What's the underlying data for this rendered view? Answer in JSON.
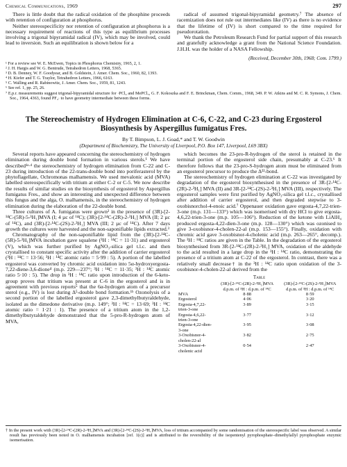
{
  "header": {
    "left": "Chemical Communications, 1969",
    "right": "297"
  },
  "top": {
    "left_paragraphs": [
      "There is little doubt that the radical oxidation of the phosphine proceeds with retention of configuration at phosphorus.",
      "Neither stereospecificity nor retention of configuration at phosphorus is a necessary requirement of reactions of this type as equilibrium processes involving a trigonal bipyramidal radical (IV), which may be involved, could lead to inversion. Such an equilibration is shown below for a"
    ],
    "footnotes": [
      "¹ For a review see W. E. McEwen, Topics in Phosphorus Chemistry, 1965, 2, 1.",
      "² J. H. Hargis and W. G. Bentrude, Tetrahedron Letters, 1968, 5365.",
      "³ D. B. Denney, W. F. Goodyear, and B. Goldstein, J. Amer. Chem. Soc., 1960, 82, 1393.",
      "⁴ H. Kiefer and T. G. Traylor, Tetrahedron Letters, 1966, 6163.",
      "⁵ C. Walling and R. Rabinowitz, J. Amer. Chem. Soc., 1959, 81, 1243.",
      "⁶ See ref. 1, pp. 25, 26.",
      "⁷ E.p.r. measurements suggest trigonal-bipyramidal structure for ·PCl₄ and MePCl₃, G. F. Kokoszka and F. E. Brinckman, Chem. Comm., 1968, 349. P. W. Atkins and M. C. R. Symons, J. Chem. Soc., 1964, 4363, found PF₄· to have geometry intermediate between these forms."
    ],
    "right_paragraphs": [
      "radical of assumed trigonal-bipyramidal geometry.⁷ The absence of racemization does not rule out intermediates like (IV) as there is no evidence that the lifetime of (IV) is short compared to the time required for pseudorotation.",
      "We thank the Petroleum Research Fund for partial support of this research and gratefully acknowledge a grant from the National Science Foundation. J.H.H. was the holder of a NASA Fellowship."
    ],
    "received": "(Received, December 30th, 1968; Com. 1799.)"
  },
  "article": {
    "title": "The Stereochemistry of Hydrogen Elimination at C-6, C-22, and C-23 during Ergosterol Biosynthesis by Aspergillus fumigatus Fres.",
    "authors": "By T. Bimpson, L. J. Goad,* and T. W. Goodwin",
    "affiliation": "(Department of Biochemistry, The University of Liverpool, P.O. Box 147, Liverpool, L69 3BX)",
    "left_paragraphs": [
      "Several reports have appeared concerning the stereochemistry of hydrogen elimination during double bond formation in various sterols.¹ We have described¹ᵃ·ᵈ the stereochemistry of hydrogen elimination from C-22 and C-23 during introduction of the 22-trans-double bond into poriferasterol by the phytoflagellate, Ochromonas malhamensis. We used mevalonic acid (MVA) labelled stereospecifically with tritium at either C-2 or C-5. We now describe the results of similar studies on the biosynthesis of ergosterol by Aspergillus fumigatus Fres., and show an interesting and unexpected difference between this fungus and the alga, O. malhamensis, in the stereochemistry of hydrogen elimination during the elaboration of the 22-double bond.",
      "Three cultures of A. fumigatus were grown² in the presence of (3R)-[2-¹⁴C-(5R)-5-³H₁]MVA (I; 4 µc of ¹⁴C); (3R)-[2-¹⁴C-(2R)-2-³H₁] MVA (II; 2 µc of ¹⁴C), and (3R)-[2-¹⁴C-(2S)-2-³H₁] MVA (III; 2 µc of ¹⁴C). After 7 days growth the cultures were harvested and the non-saponifiable lipids extracted.³",
      "Chromatography of the non-saponifiable lipid from the (3R)-[2-¹⁴C-(5R)-5-³H₁]MVA incubation gave squalene (³H : ¹⁴C = 11·31) and ergosterol (V), which was further purified by AgNO₃-silica gel t.l.c. and then crystallised to constant specific activity after the addition of carrier ergosterol (³H : ¹⁴C = 13·56; ³H : ¹⁴C atomic ratio = 5·99 : 5). A portion of the labelled ergosterol was converted by chromic acid oxidation into 5α-hydroxyergosta-7,22-diene-3,6-dione⁴ (m.p. 229—237°; ³H : ¹⁴C = 11·35; ³H : ¹⁴C atomic ratio 5·10 : 5). The drop in ³H : ¹⁴C ratio upon introduction of the 6-keto-group proves that tritium was present at C-6 in the ergosterol and is in agreement with previous reports⁵ that the 6α-hydrogen atom of a precursor sterol (e.g., IV) is lost during Δ⁵-double bond formation.¹ᵇ Ozonolysis of a second portion of the labelled ergosterol gave 2,3-dimethylbutyraldehyde, isolated as the dimedone derivative (m.p. 149°; ³H : ¹⁴C = 13·69; ³H : ¹⁴C atomic ratio = 1·21 : 1). The presence of a tritium atom in the 1,2-dimethylbutyraldehyde demonstrated that the 5-pro-R-hydrogen atom of MVA,"
    ],
    "right_paragraphs": [
      "which becomes the 23-pro-R-hydrogen of the sterol is retained in the terminal portion of the ergosterol side chain, presumably at C-23.⁶ It therefore follows that the 23-pro-S-hydrogen atom must be eliminated from an ergosterol precursor to produce the Δ²²-bond.",
      "The stereochemistry of hydrogen elimination at C-22 was investigated by degradation of the ergosterol biosynthesised in the presence of 3R-[2-¹⁴C-(2R)-2-³H₁] MVA (II) and 3R-[2-¹⁴C-(2S)-2-³H₁] MVA (III), respectively. The ergosterol samples were first purified by AgNO₃-silica gel t.l.c., crystallised after addition of carrier ergosterol, and then degraded stepwise to 3-oxobisnorchol-4-enoic acid.⁷ Oppenauer oxidation gave ergosta-4,7,22-trien-3-one (m.p. 131—133°) which was isomerised with dry HCl to give ergosta-4,6,22-trien-3-one (m.p. 105—106°). Reduction of the ketone with LiAlH₄ produced ergosta-4,22-dien-3-one (m.p. 128—130°) which was ozonised to give 3-oxobisnor-4-cholen-22-al (m.p. 153—155°). Finally, oxidation with chromic acid gave 3-oxobisnor-4-cholenic acid (m.p. 263—265°, decomp.). The ³H : ¹⁴C ratios are given in the Table. In the degradation of the ergosterol biosynthesised from 3R-[2-¹⁴C-(2R)-2-³H₁] MVA, oxidation of the aldehyde to the acid resulted in a large drop in the ³H : ¹⁴C ratio, demonstrating the presence of a tritium atom at C-22 of the ergosterol. In contrast, there was a relatively small decrease† in the ³H : ¹⁴C ratio upon oxidation of the 3-oxobisnor-4-cholen-22-al derived from the"
    ],
    "table": {
      "title": "Table",
      "columns": [
        "(3R)-[2-¹⁴C-(2R)-2-³H₁]MVA d.p.m. of ³H : d.p.m. of ¹⁴C",
        "(3R)-[2-¹⁴C-(2S)-2-³H₁]MVA d.p.m. of ³H : d.p.m. of ¹⁴C"
      ],
      "rows": [
        [
          "MVA",
          "8·88",
          "8·59"
        ],
        [
          "Ergosterol",
          "4·06",
          "3·20"
        ],
        [
          "Ergosta-4,7,22-trien-3-one",
          "3·89",
          "3·15"
        ],
        [
          "Ergosta-4,6,22-trien-3-one",
          "3·77",
          "3·12"
        ],
        [
          "Ergosta-4,22-dien-3-one",
          "3·95",
          "3·08"
        ],
        [
          "3-Oxobisnor-4-cholen-22-al",
          "3·82",
          "2·75"
        ],
        [
          "3-Oxobisnor-4-cholenic acid",
          "0·54",
          "2·47"
        ]
      ]
    },
    "footnote": "† In the present work with (3R)-[2-¹⁴C-(2R)-2-³H₁]MVA and (3R)-[2-¹⁴C-(2S)-2-³H₁]MVA, loss of tritium accompanied by some randomisation of the stereospecific label was observed. A similar result has previously been noted in O. malhamensis incubation [ref. 1(c)] and is attributed to the reversibility of the isopentenyl pyrophosphate–dimethylallyl pyrophosphate enzymic isomerisation."
  }
}
